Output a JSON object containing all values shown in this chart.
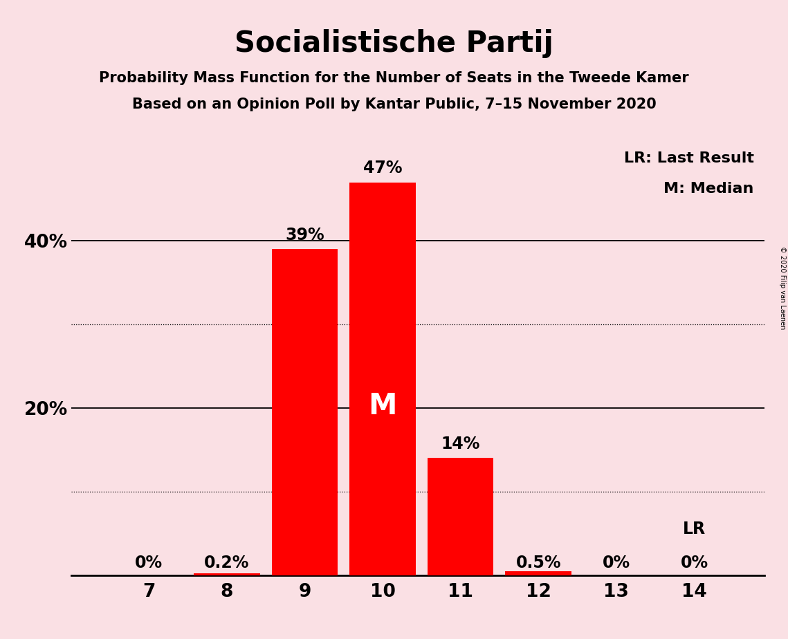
{
  "title": "Socialistische Partij",
  "subtitle1": "Probability Mass Function for the Number of Seats in the Tweede Kamer",
  "subtitle2": "Based on an Opinion Poll by Kantar Public, 7–15 November 2020",
  "copyright": "© 2020 Filip van Laenen",
  "seats": [
    7,
    8,
    9,
    10,
    11,
    12,
    13,
    14
  ],
  "probabilities": [
    0.0,
    0.2,
    39.0,
    47.0,
    14.0,
    0.5,
    0.0,
    0.0
  ],
  "bar_labels": [
    "0%",
    "0.2%",
    "39%",
    "47%",
    "14%",
    "0.5%",
    "0%",
    "0%"
  ],
  "bar_color": "#FF0000",
  "median_seat": 10,
  "median_label": "M",
  "lr_seat": 14,
  "lr_label": "LR",
  "legend_lr": "LR: Last Result",
  "legend_m": "M: Median",
  "background_color": "#FAE0E4",
  "ylim": [
    0,
    52
  ],
  "major_gridlines": [
    20,
    40
  ],
  "minor_gridlines": [
    10,
    30
  ],
  "title_fontsize": 30,
  "subtitle_fontsize": 15,
  "bar_label_fontsize": 17,
  "axis_label_fontsize": 19,
  "legend_fontsize": 16,
  "median_label_fontsize": 30,
  "lr_label_fontsize": 17
}
